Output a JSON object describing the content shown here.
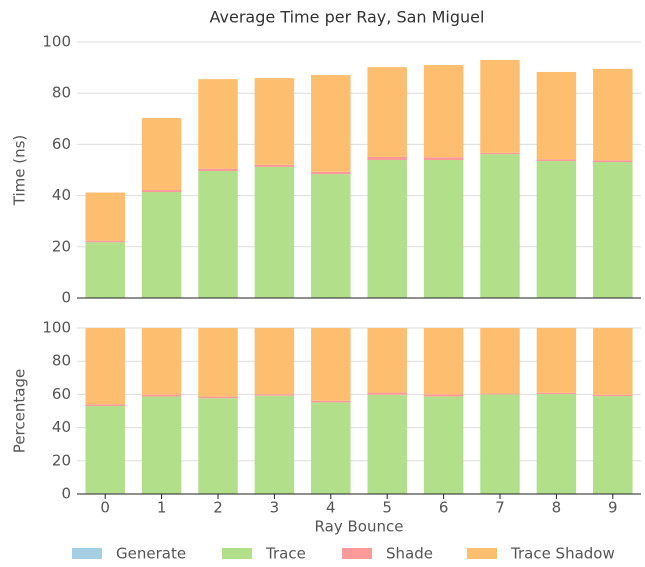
{
  "chart_data": [
    {
      "type": "bar",
      "stacked": true,
      "title": "Average Time per Ray, San Miguel",
      "ylabel": "Time (ns)",
      "ylim": [
        0,
        100
      ],
      "yticks": [
        0,
        20,
        40,
        60,
        80,
        100
      ],
      "grid": true,
      "series": [
        {
          "name": "Generate",
          "color": "#a6cee3",
          "values": [
            0.2,
            0.2,
            0.2,
            0.2,
            0.2,
            0.2,
            0.2,
            0.2,
            0.2,
            0.2
          ]
        },
        {
          "name": "Trace",
          "color": "#b2df8a",
          "values": [
            21.6,
            41.2,
            49.4,
            51.0,
            48.2,
            53.7,
            53.7,
            56.0,
            53.3,
            52.9
          ]
        },
        {
          "name": "Shade",
          "color": "#fb9a99",
          "values": [
            0.6,
            0.8,
            0.9,
            0.8,
            0.9,
            1.2,
            1.1,
            0.5,
            0.7,
            0.7
          ]
        },
        {
          "name": "Trace Shadow",
          "color": "#fdbf6f",
          "values": [
            18.8,
            28.1,
            35.0,
            33.9,
            37.8,
            35.1,
            36.0,
            36.3,
            34.1,
            35.7
          ]
        }
      ]
    },
    {
      "type": "bar",
      "stacked": true,
      "ylabel": "Percentage",
      "xlabel": "Ray Bounce",
      "categories": [
        "0",
        "1",
        "2",
        "3",
        "4",
        "5",
        "6",
        "7",
        "8",
        "9"
      ],
      "ylim": [
        0,
        100
      ],
      "yticks": [
        0,
        20,
        40,
        60,
        80,
        100
      ],
      "grid": true,
      "series": [
        {
          "color": "#a6cee3",
          "values": [
            0.5,
            0.3,
            0.2,
            0.2,
            0.2,
            0.2,
            0.2,
            0.2,
            0.2,
            0.2
          ]
        },
        {
          "color": "#b2df8a",
          "values": [
            52.5,
            58.4,
            57.5,
            59.0,
            55.0,
            59.6,
            58.6,
            59.8,
            60.0,
            58.8
          ]
        },
        {
          "color": "#fb9a99",
          "values": [
            1.0,
            1.1,
            1.0,
            0.9,
            1.0,
            1.3,
            1.2,
            0.6,
            0.8,
            0.8
          ]
        },
        {
          "color": "#fdbf6f",
          "values": [
            46.0,
            40.2,
            41.3,
            39.9,
            43.8,
            38.9,
            40.0,
            39.4,
            39.0,
            40.2
          ]
        }
      ]
    }
  ]
}
